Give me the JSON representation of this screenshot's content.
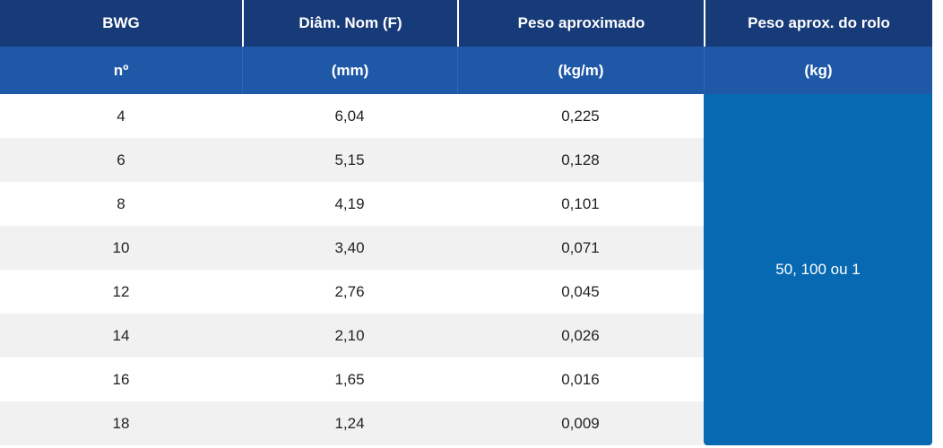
{
  "table": {
    "headers": [
      [
        "BWG",
        "Diâm. Nom (F)",
        "Peso aproximado",
        "Peso aprox. do rolo"
      ],
      [
        "nº",
        "(mm)",
        "(kg/m)",
        "(kg)"
      ]
    ],
    "rows": [
      [
        "4",
        "6,04",
        "0,225"
      ],
      [
        "6",
        "5,15",
        "0,128"
      ],
      [
        "8",
        "4,19",
        "0,101"
      ],
      [
        "10",
        "3,40",
        "0,071"
      ],
      [
        "12",
        "2,76",
        "0,045"
      ],
      [
        "14",
        "2,10",
        "0,026"
      ],
      [
        "16",
        "1,65",
        "0,016"
      ],
      [
        "18",
        "1,24",
        "0,009"
      ]
    ],
    "merged_cell": "50, 100 ou 1"
  }
}
